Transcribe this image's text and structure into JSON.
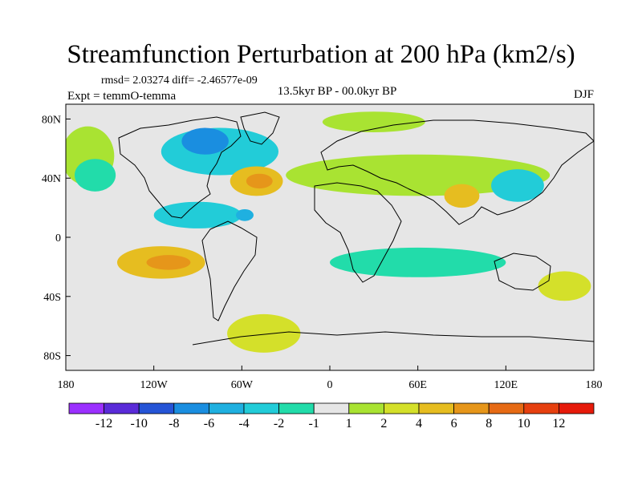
{
  "title": "Streamfunction Perturbation at 200 hPa (km2/s)",
  "stats": "rmsd= 2.03274  diff= -2.46577e-09",
  "experiment": "Expt = temmO-temma",
  "period": "13.5kyr BP - 00.0kyr BP",
  "season": "DJF",
  "axes": {
    "y_ticks": [
      "80N",
      "40N",
      "0",
      "40S",
      "80S"
    ],
    "x_ticks": [
      "180",
      "120W",
      "60W",
      "0",
      "60E",
      "120E",
      "180"
    ]
  },
  "colorbar": {
    "colors": [
      "#9b30ff",
      "#5a2bd8",
      "#2554d6",
      "#1a8ee0",
      "#1fb0e0",
      "#22ccd8",
      "#22dcaa",
      "#e6e6e6",
      "#a9e332",
      "#d4e02a",
      "#e6bd20",
      "#e6961a",
      "#e66a14",
      "#e6400f",
      "#e61a0a"
    ],
    "labels": [
      "-12",
      "-10",
      "-8",
      "-6",
      "-4",
      "-2",
      "-1",
      "1",
      "2",
      "4",
      "6",
      "8",
      "10",
      "12"
    ]
  },
  "field_regions": [
    {
      "name": "north-pacific-positive",
      "level": "1",
      "cx": -165,
      "cy": 55,
      "rx": 18,
      "ry": 20
    },
    {
      "name": "north-atlantic-negative",
      "level": "-2",
      "cx": -75,
      "cy": 58,
      "rx": 40,
      "ry": 16
    },
    {
      "name": "labrador-negative-core",
      "level": "-6",
      "cx": -85,
      "cy": 65,
      "rx": 16,
      "ry": 9
    },
    {
      "name": "nw-us-negative-ring",
      "level": "-1",
      "cx": -160,
      "cy": 42,
      "rx": 14,
      "ry": 11
    },
    {
      "name": "north-atlantic-high",
      "level": "4",
      "cx": -50,
      "cy": 38,
      "rx": 18,
      "ry": 10
    },
    {
      "name": "north-atlantic-high-core",
      "level": "6",
      "cx": -48,
      "cy": 38,
      "rx": 9,
      "ry": 5
    },
    {
      "name": "central-pacific-low",
      "level": "-2",
      "cx": -90,
      "cy": 15,
      "rx": 30,
      "ry": 9
    },
    {
      "name": "central-pacific-low-core",
      "level": "-4",
      "cx": -58,
      "cy": 15,
      "rx": 6,
      "ry": 4
    },
    {
      "name": "south-pacific-high",
      "level": "4",
      "cx": -115,
      "cy": -17,
      "rx": 30,
      "ry": 11
    },
    {
      "name": "south-pacific-high-core",
      "level": "6",
      "cx": -110,
      "cy": -17,
      "rx": 15,
      "ry": 5
    },
    {
      "name": "south-atlantic-positive",
      "level": "2",
      "cx": -45,
      "cy": -65,
      "rx": 25,
      "ry": 13
    },
    {
      "name": "north-africa-positive",
      "level": "1",
      "cx": 60,
      "cy": 42,
      "rx": 90,
      "ry": 14
    },
    {
      "name": "arctic-positive",
      "level": "1",
      "cx": 30,
      "cy": 78,
      "rx": 35,
      "ry": 7
    },
    {
      "name": "india-high",
      "level": "4",
      "cx": 90,
      "cy": 28,
      "rx": 12,
      "ry": 8
    },
    {
      "name": "japan-low",
      "level": "-2",
      "cx": 128,
      "cy": 35,
      "rx": 18,
      "ry": 11
    },
    {
      "name": "indian-ocean-negative",
      "level": "-1",
      "cx": 60,
      "cy": -17,
      "rx": 60,
      "ry": 10
    },
    {
      "name": "australia-high",
      "level": "2",
      "cx": 160,
      "cy": -33,
      "rx": 18,
      "ry": 10
    }
  ]
}
